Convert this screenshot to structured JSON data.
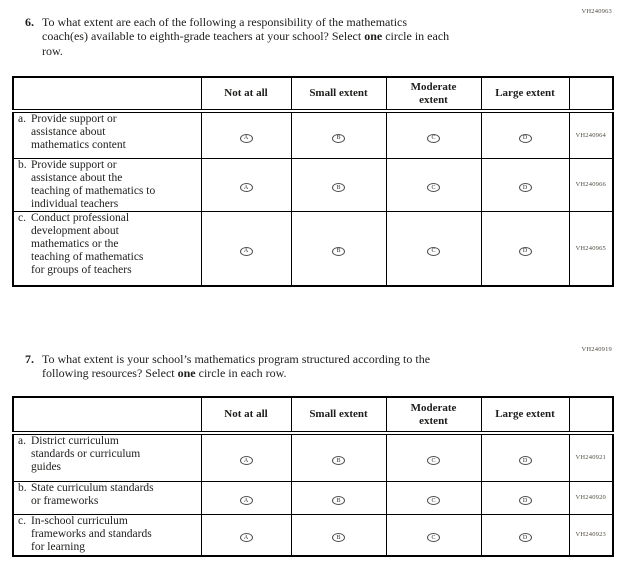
{
  "colors": {
    "border": "#000000",
    "text": "#1d1d1b",
    "code_text": "#4f4a42"
  },
  "options": [
    "A",
    "B",
    "C",
    "D"
  ],
  "column_headers": [
    "Not at all",
    "Small extent",
    "Moderate\nextent",
    "Large extent"
  ],
  "question6": {
    "number": "6.",
    "code": "VH240963",
    "lines": [
      [
        {
          "t": "To what extent are each of the following a responsibility of the mathematics"
        }
      ],
      [
        {
          "t": "coach(es) available to eighth-grade teachers at your school? Select "
        },
        {
          "t": "one",
          "b": true
        },
        {
          "t": " circle in each"
        }
      ],
      [
        {
          "t": "row."
        }
      ]
    ]
  },
  "question7": {
    "number": "7.",
    "code": "VH240919",
    "lines": [
      [
        {
          "t": "To what extent is your school’s mathematics program structured according to the"
        }
      ],
      [
        {
          "t": "following resources? Select "
        },
        {
          "t": "one",
          "b": true
        },
        {
          "t": " circle in each row."
        }
      ]
    ]
  },
  "table1": {
    "rows": [
      {
        "letter": "a.",
        "label": "Provide support or\nassistance about\nmathematics content",
        "code": "VH240964"
      },
      {
        "letter": "b.",
        "label": "Provide support or\nassistance about the\nteaching of mathematics to\nindividual teachers",
        "code": "VH240966"
      },
      {
        "letter": "c.",
        "label": "Conduct professional\ndevelopment about\nmathematics or the\nteaching of mathematics\nfor groups of teachers",
        "code": "VH240965"
      }
    ]
  },
  "table2": {
    "rows": [
      {
        "letter": "a.",
        "label": "District curriculum\nstandards or curriculum\nguides",
        "code": "VH240921"
      },
      {
        "letter": "b.",
        "label": "State curriculum standards\nor frameworks",
        "code": "VH240920"
      },
      {
        "letter": "c.",
        "label": "In-school curriculum\nframeworks and standards\nfor learning",
        "code": "VH240923"
      }
    ]
  }
}
